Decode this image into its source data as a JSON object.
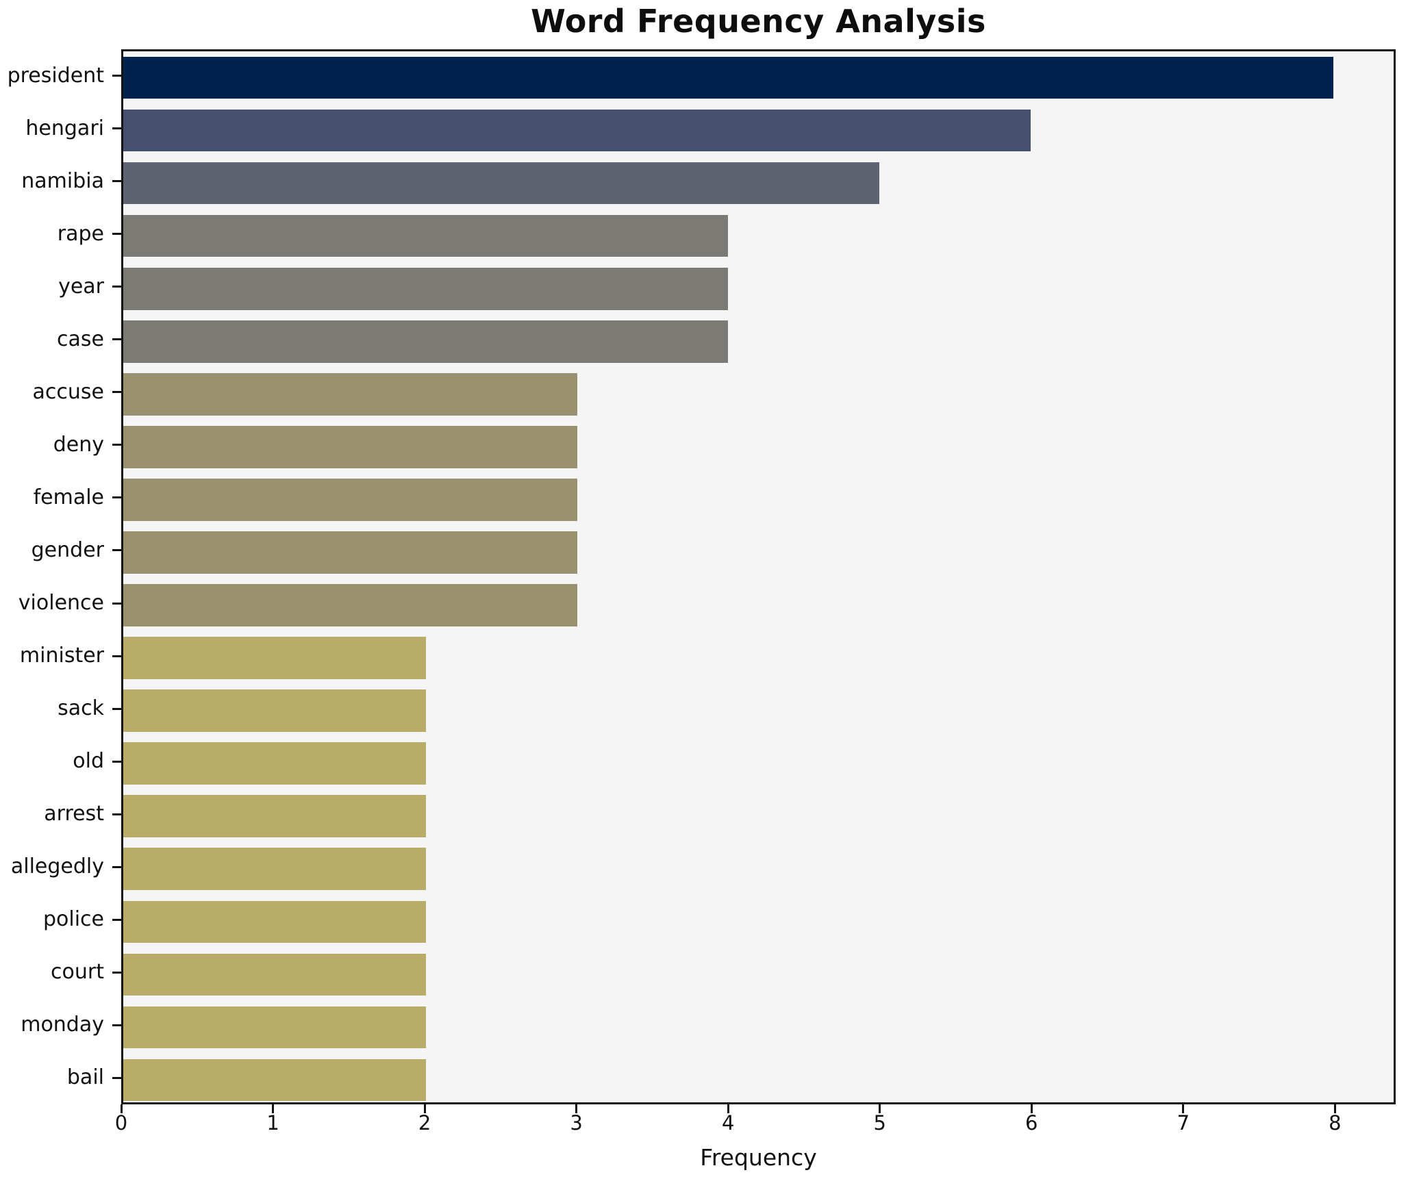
{
  "chart_data": {
    "type": "bar",
    "orientation": "horizontal",
    "title": "Word Frequency Analysis",
    "xlabel": "Frequency",
    "ylabel": "",
    "categories": [
      "president",
      "hengari",
      "namibia",
      "rape",
      "year",
      "case",
      "accuse",
      "deny",
      "female",
      "gender",
      "violence",
      "minister",
      "sack",
      "old",
      "arrest",
      "allegedly",
      "police",
      "court",
      "monday",
      "bail"
    ],
    "values": [
      8,
      6,
      5,
      4,
      4,
      4,
      3,
      3,
      3,
      3,
      3,
      2,
      2,
      2,
      2,
      2,
      2,
      2,
      2,
      2
    ],
    "bar_colors": [
      "#00224e",
      "#45506e",
      "#5d6370",
      "#7b7a74",
      "#7b7a74",
      "#7b7a74",
      "#9a9171",
      "#9a9171",
      "#9a9171",
      "#9a9171",
      "#9a9171",
      "#b9ac68",
      "#b9ac68",
      "#b9ac68",
      "#b9ac68",
      "#b9ac68",
      "#b9ac68",
      "#b9ac68",
      "#b9ac68",
      "#b9ac68"
    ],
    "xlim": [
      0,
      8.4
    ],
    "xticks": [
      0,
      1,
      2,
      3,
      4,
      5,
      6,
      7,
      8
    ],
    "grid": false,
    "legend_position": "none",
    "plot_background": "#f5f5f6",
    "figure_background": "#ffffff",
    "spine_color": "#141414",
    "text_color": "#111111"
  }
}
